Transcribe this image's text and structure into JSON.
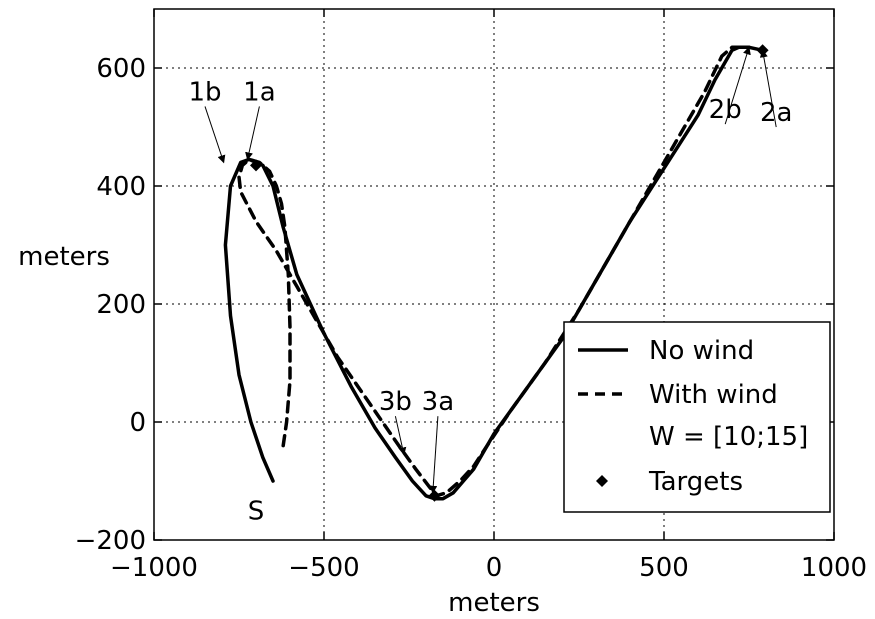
{
  "chart_data": {
    "type": "line",
    "title": "",
    "xlabel": "meters",
    "ylabel": "meters",
    "xlim": [
      -1000,
      1000
    ],
    "ylim": [
      -200,
      700
    ],
    "grid": true,
    "xticks": [
      -1000,
      -500,
      0,
      500,
      1000
    ],
    "yticks": [
      -200,
      0,
      200,
      400,
      600
    ],
    "xtick_labels": [
      "−1000",
      "−500",
      "0",
      "500",
      "1000"
    ],
    "ytick_labels": [
      "−200",
      "0",
      "200",
      "400",
      "600"
    ],
    "legend": {
      "position": "bottom-right",
      "entries": [
        "No wind",
        "With wind",
        "W = [10;15]",
        "Targets"
      ]
    },
    "series": [
      {
        "name": "No wind",
        "style": "solid",
        "x": [
          -650,
          -680,
          -715,
          -750,
          -775,
          -790,
          -775,
          -745,
          -720,
          -700,
          -680,
          -650,
          -620,
          -580,
          -500,
          -420,
          -350,
          -290,
          -240,
          -200,
          -175,
          -150,
          -120,
          -90,
          -60,
          0,
          100,
          200,
          300,
          400,
          500,
          600,
          650,
          700,
          720,
          750,
          790
        ],
        "y": [
          -100,
          -60,
          0,
          80,
          180,
          300,
          400,
          440,
          445,
          440,
          435,
          400,
          330,
          250,
          150,
          60,
          -10,
          -60,
          -100,
          -125,
          -130,
          -130,
          -120,
          -100,
          -80,
          -20,
          60,
          140,
          240,
          340,
          430,
          520,
          580,
          630,
          635,
          635,
          630
        ]
      },
      {
        "name": "With wind",
        "style": "dashed",
        "x": [
          -620,
          -610,
          -600,
          -600,
          -605,
          -615,
          -625,
          -640,
          -660,
          -690,
          -720,
          -740,
          -750,
          -745,
          -700,
          -640,
          -580,
          -520,
          -460,
          -400,
          -340,
          -280,
          -230,
          -190,
          -170,
          -140,
          -100,
          -60,
          -20,
          50,
          150,
          250,
          350,
          450,
          550,
          620,
          670,
          700,
          750
        ],
        "y": [
          -40,
          0,
          70,
          160,
          250,
          330,
          370,
          400,
          425,
          440,
          445,
          435,
          415,
          390,
          340,
          290,
          230,
          170,
          110,
          60,
          10,
          -40,
          -80,
          -110,
          -125,
          -120,
          -100,
          -75,
          -40,
          20,
          100,
          190,
          290,
          390,
          490,
          560,
          620,
          635,
          635
        ]
      }
    ],
    "targets": {
      "name": "Targets",
      "points": [
        {
          "x": -700,
          "y": 435
        },
        {
          "x": 790,
          "y": 630
        },
        {
          "x": -175,
          "y": -125
        }
      ]
    },
    "annotations": [
      {
        "text": "1a",
        "x": -690,
        "y": 545,
        "arrow_to": {
          "x": -725,
          "y": 445
        }
      },
      {
        "text": "1b",
        "x": -850,
        "y": 545,
        "arrow_to": {
          "x": -795,
          "y": 440
        }
      },
      {
        "text": "2b",
        "x": 680,
        "y": 515,
        "arrow_to": {
          "x": 750,
          "y": 635
        }
      },
      {
        "text": "2a",
        "x": 830,
        "y": 510,
        "arrow_to": {
          "x": 790,
          "y": 630
        }
      },
      {
        "text": "3b",
        "x": -290,
        "y": 20,
        "arrow_to": {
          "x": -265,
          "y": -55
        }
      },
      {
        "text": "3a",
        "x": -165,
        "y": 20,
        "arrow_to": {
          "x": -180,
          "y": -120
        }
      },
      {
        "text": "S",
        "x": -700,
        "y": -165,
        "arrow_to": null
      }
    ]
  }
}
